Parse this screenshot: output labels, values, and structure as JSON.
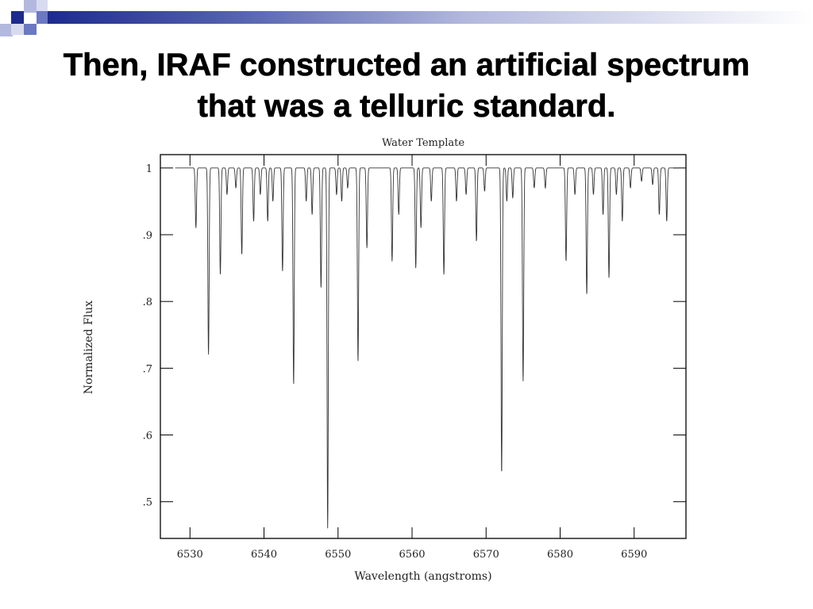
{
  "slide": {
    "title_line1": "Then, IRAF constructed an artificial spectrum",
    "title_line2": "that was a telluric standard.",
    "accent_colors": [
      "#1d2b8f",
      "#6b78c2",
      "#b3b9de"
    ]
  },
  "chart_data": {
    "type": "line",
    "title": "Water Template",
    "xlabel": "Wavelength (angstroms)",
    "ylabel": "Normalized Flux",
    "xlim": [
      6526,
      6597
    ],
    "ylim": [
      0.445,
      1.02
    ],
    "xticks": [
      6530,
      6540,
      6550,
      6560,
      6570,
      6580,
      6590
    ],
    "xtick_labels": [
      "6530",
      "6540",
      "6550",
      "6560",
      "6570",
      "6580",
      "6590"
    ],
    "yticks": [
      1,
      0.9,
      0.8,
      0.7,
      0.6,
      0.5
    ],
    "ytick_labels": [
      "1",
      ".9",
      ".8",
      ".7",
      ".6",
      ".5"
    ],
    "grid": false,
    "continuum": 1.0,
    "x_start": 6528,
    "x_end": 6596,
    "absorption_lines": [
      {
        "x": 6530.8,
        "y": 0.91
      },
      {
        "x": 6532.5,
        "y": 0.72
      },
      {
        "x": 6534.1,
        "y": 0.84
      },
      {
        "x": 6535.0,
        "y": 0.96
      },
      {
        "x": 6536.2,
        "y": 0.97
      },
      {
        "x": 6537.0,
        "y": 0.87
      },
      {
        "x": 6538.6,
        "y": 0.92
      },
      {
        "x": 6539.5,
        "y": 0.96
      },
      {
        "x": 6540.5,
        "y": 0.92
      },
      {
        "x": 6541.2,
        "y": 0.95
      },
      {
        "x": 6542.5,
        "y": 0.845
      },
      {
        "x": 6544.0,
        "y": 0.675
      },
      {
        "x": 6545.7,
        "y": 0.95
      },
      {
        "x": 6546.5,
        "y": 0.93
      },
      {
        "x": 6547.7,
        "y": 0.82
      },
      {
        "x": 6548.6,
        "y": 0.46
      },
      {
        "x": 6549.8,
        "y": 0.96
      },
      {
        "x": 6550.5,
        "y": 0.95
      },
      {
        "x": 6551.3,
        "y": 0.97
      },
      {
        "x": 6552.7,
        "y": 0.71
      },
      {
        "x": 6553.9,
        "y": 0.88
      },
      {
        "x": 6557.3,
        "y": 0.86
      },
      {
        "x": 6558.2,
        "y": 0.93
      },
      {
        "x": 6560.5,
        "y": 0.85
      },
      {
        "x": 6561.2,
        "y": 0.91
      },
      {
        "x": 6562.6,
        "y": 0.95
      },
      {
        "x": 6564.3,
        "y": 0.84
      },
      {
        "x": 6566.0,
        "y": 0.95
      },
      {
        "x": 6567.3,
        "y": 0.96
      },
      {
        "x": 6568.7,
        "y": 0.89
      },
      {
        "x": 6569.8,
        "y": 0.965
      },
      {
        "x": 6572.1,
        "y": 0.54
      },
      {
        "x": 6572.8,
        "y": 0.95
      },
      {
        "x": 6573.6,
        "y": 0.955
      },
      {
        "x": 6575.0,
        "y": 0.68
      },
      {
        "x": 6576.5,
        "y": 0.97
      },
      {
        "x": 6578.0,
        "y": 0.97
      },
      {
        "x": 6580.8,
        "y": 0.86
      },
      {
        "x": 6582.0,
        "y": 0.96
      },
      {
        "x": 6583.6,
        "y": 0.81
      },
      {
        "x": 6584.5,
        "y": 0.96
      },
      {
        "x": 6585.8,
        "y": 0.93
      },
      {
        "x": 6586.6,
        "y": 0.835
      },
      {
        "x": 6587.6,
        "y": 0.96
      },
      {
        "x": 6588.4,
        "y": 0.92
      },
      {
        "x": 6589.5,
        "y": 0.97
      },
      {
        "x": 6591.0,
        "y": 0.98
      },
      {
        "x": 6592.5,
        "y": 0.975
      },
      {
        "x": 6593.4,
        "y": 0.93
      },
      {
        "x": 6594.4,
        "y": 0.92
      }
    ]
  }
}
